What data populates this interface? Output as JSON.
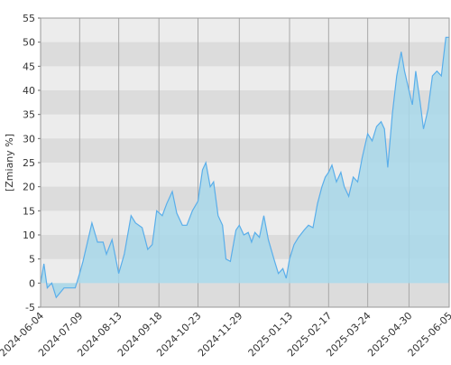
{
  "chart_data": {
    "type": "area",
    "y_label": "[Zmiany %]",
    "x": [
      "2024-06-04",
      "2024-06-07",
      "2024-06-10",
      "2024-06-14",
      "2024-06-18",
      "2024-06-25",
      "2024-07-02",
      "2024-07-05",
      "2024-07-09",
      "2024-07-12",
      "2024-07-17",
      "2024-07-20",
      "2024-07-25",
      "2024-07-30",
      "2024-08-02",
      "2024-08-07",
      "2024-08-13",
      "2024-08-18",
      "2024-08-24",
      "2024-08-28",
      "2024-09-03",
      "2024-09-08",
      "2024-09-12",
      "2024-09-16",
      "2024-09-21",
      "2024-09-25",
      "2024-09-30",
      "2024-10-04",
      "2024-10-09",
      "2024-10-13",
      "2024-10-18",
      "2024-10-23",
      "2024-10-27",
      "2024-10-30",
      "2024-11-03",
      "2024-11-06",
      "2024-11-10",
      "2024-11-14",
      "2024-11-17",
      "2024-11-21",
      "2024-11-26",
      "2024-11-29",
      "2024-12-03",
      "2024-12-07",
      "2024-12-10",
      "2024-12-13",
      "2024-12-17",
      "2024-12-21",
      "2024-12-25",
      "2024-12-30",
      "2025-01-03",
      "2025-01-07",
      "2025-01-10",
      "2025-01-13",
      "2025-01-17",
      "2025-01-21",
      "2025-01-26",
      "2025-01-30",
      "2025-02-03",
      "2025-02-07",
      "2025-02-11",
      "2025-02-14",
      "2025-02-17",
      "2025-02-20",
      "2025-02-24",
      "2025-02-28",
      "2025-03-03",
      "2025-03-07",
      "2025-03-11",
      "2025-03-15",
      "2025-03-19",
      "2025-03-24",
      "2025-03-28",
      "2025-04-01",
      "2025-04-05",
      "2025-04-08",
      "2025-04-11",
      "2025-04-15",
      "2025-04-19",
      "2025-04-23",
      "2025-04-26",
      "2025-04-30",
      "2025-05-03",
      "2025-05-06",
      "2025-05-10",
      "2025-05-13",
      "2025-05-17",
      "2025-05-21",
      "2025-05-25",
      "2025-05-29",
      "2025-06-02",
      "2025-06-05"
    ],
    "values": [
      0,
      4,
      -1,
      0,
      -3,
      -1,
      -1,
      -1,
      2,
      4.5,
      9.5,
      12.5,
      8.5,
      8.5,
      6,
      9,
      2,
      6,
      14,
      12.5,
      11.5,
      7,
      8,
      15,
      14,
      16.5,
      19,
      14.5,
      12,
      12,
      15,
      17,
      23.5,
      25,
      20,
      21,
      14,
      12,
      5,
      4.5,
      11,
      12,
      10,
      10.5,
      8.5,
      10.5,
      9.5,
      14,
      9,
      5,
      2,
      3,
      1,
      5,
      8,
      9.5,
      11,
      12,
      11.5,
      16.5,
      20,
      22,
      23,
      24.5,
      21,
      23,
      20,
      18,
      22,
      21,
      26,
      31,
      29.5,
      32.5,
      33.5,
      32,
      24,
      35,
      43,
      48,
      44,
      40,
      37,
      44,
      37.5,
      32,
      36,
      43,
      44,
      43,
      51,
      51
    ],
    "line_color": "#5aaeea",
    "fill_color": "#a8d8ea",
    "xlim": [
      "2024-06-04",
      "2025-06-05"
    ],
    "xticks": [
      "2024-06-04",
      "2024-07-09",
      "2024-08-13",
      "2024-09-18",
      "2024-10-23",
      "2024-11-29",
      "2025-01-13",
      "2025-02-17",
      "2025-03-24",
      "2025-04-30",
      "2025-06-05"
    ],
    "ylim": [
      -5,
      55
    ],
    "yticks": [
      -5,
      0,
      5,
      10,
      15,
      20,
      25,
      30,
      35,
      40,
      45,
      50,
      55
    ],
    "grid": true
  }
}
